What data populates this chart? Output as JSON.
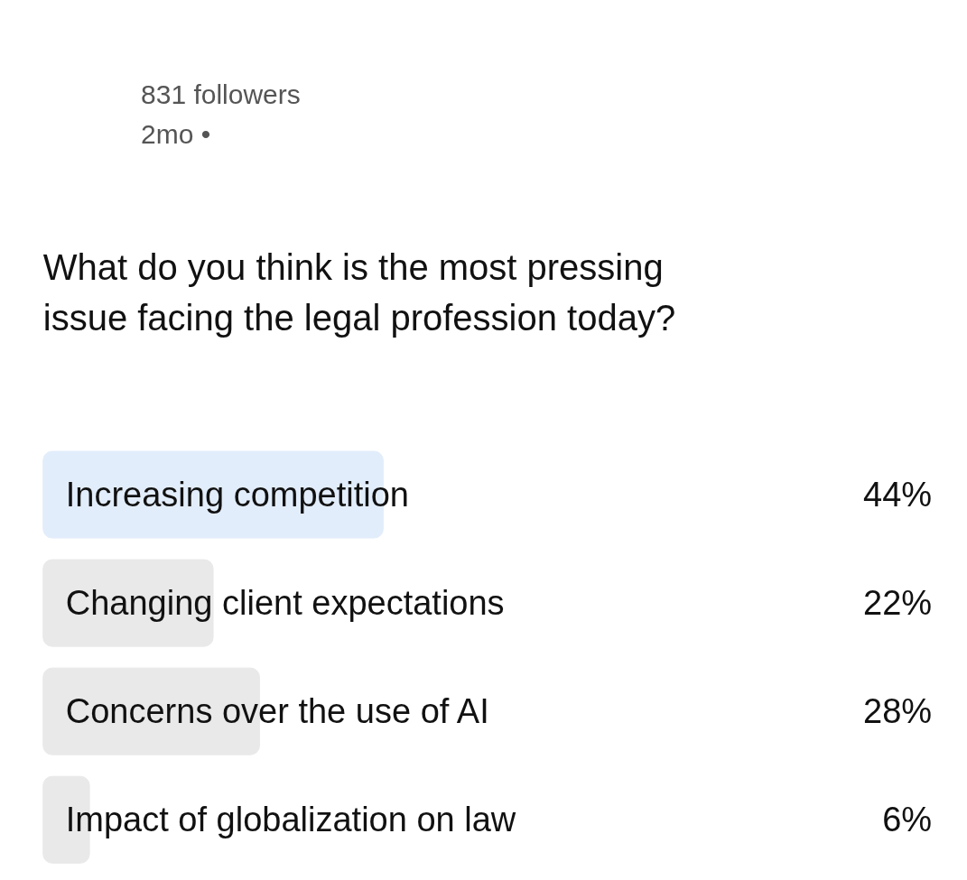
{
  "chart_data": {
    "type": "bar",
    "orientation": "horizontal",
    "title": "What do you think is the most pressing issue facing the legal profession today?",
    "annotations": [
      "831 followers",
      "2mo •"
    ],
    "categories": [
      "Increasing competition",
      "Changing client expectations",
      "Concerns over the use of AI",
      "Impact of globalization on law"
    ],
    "values": [
      44,
      22,
      28,
      6
    ],
    "colors": [
      "#e2edfb",
      "#e9e9e9",
      "#e9e9e9",
      "#e9e9e9"
    ],
    "value_labels": [
      "44%",
      "22%",
      "28%",
      "6%"
    ],
    "tick_labels": false,
    "grid": false
  }
}
